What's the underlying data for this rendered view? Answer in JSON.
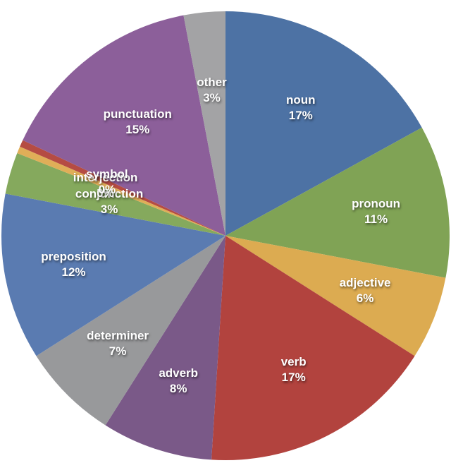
{
  "chart_data": {
    "type": "pie",
    "title": "",
    "legend": "none",
    "start_angle_deg": 0,
    "direction": "clockwise",
    "labels_on_slices": true,
    "background_color": "#ffffff",
    "label_text_color": "#ffffff",
    "slices": [
      {
        "label": "noun",
        "pct_label": "17%",
        "value": 17,
        "color": "#4d72a4"
      },
      {
        "label": "pronoun",
        "pct_label": "11%",
        "value": 11,
        "color": "#80a355"
      },
      {
        "label": "adjective",
        "pct_label": "6%",
        "value": 6,
        "color": "#dcab51"
      },
      {
        "label": "verb",
        "pct_label": "17%",
        "value": 17,
        "color": "#b2433e"
      },
      {
        "label": "adverb",
        "pct_label": "8%",
        "value": 8,
        "color": "#7a5988"
      },
      {
        "label": "determiner",
        "pct_label": "7%",
        "value": 7,
        "color": "#98999b"
      },
      {
        "label": "preposition",
        "pct_label": "12%",
        "value": 12,
        "color": "#5a7bb1"
      },
      {
        "label": "conjunction",
        "pct_label": "3%",
        "value": 3,
        "color": "#85a95d"
      },
      {
        "label": "interjection",
        "pct_label": "0%",
        "value": 0.5,
        "color": "#e0ae58"
      },
      {
        "label": "symbol",
        "pct_label": "0%",
        "value": 0.5,
        "color": "#b54c43"
      },
      {
        "label": "punctuation",
        "pct_label": "15%",
        "value": 15,
        "color": "#8c5f9a"
      },
      {
        "label": "other",
        "pct_label": "3%",
        "value": 3,
        "color": "#a3a3a5"
      }
    ]
  }
}
